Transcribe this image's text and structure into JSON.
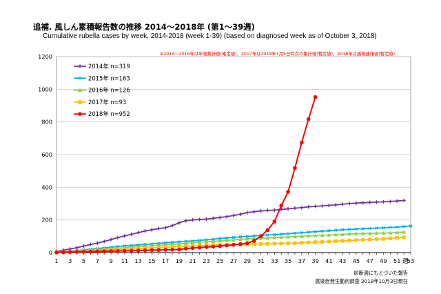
{
  "title": "追補. 風しん累積報告数の推移  2014～2018年 (第1～39週)",
  "subtitle": "Cumulative rubella cases by week, 2014-2018 (week 1-39)  (based on diagnosed week as of October 3, 2018)",
  "note_top": "※2014～2016年は年報集計値(確定値)、2017年は2018年1月5日時点の集計値(暫定値)、2018年は週報速報値(暫定値)",
  "x_unit": "週",
  "footer_line1": "診断週にもとづいた報告",
  "footer_line2": "感染症発生動向調査 2018年10月3日現在",
  "chart_data": {
    "type": "line",
    "title": "追補. 風しん累積報告数の推移  2014～2018年 (第1～39週)",
    "xlabel": "週",
    "ylabel": "",
    "xlim": [
      1,
      53
    ],
    "ylim": [
      0,
      1200
    ],
    "x_ticks": [
      1,
      3,
      5,
      7,
      9,
      11,
      13,
      15,
      17,
      19,
      21,
      23,
      25,
      27,
      29,
      31,
      33,
      35,
      37,
      39,
      41,
      43,
      45,
      47,
      49,
      51,
      53
    ],
    "y_ticks": [
      0,
      200,
      400,
      600,
      800,
      1000,
      1200
    ],
    "grid": "horizontal",
    "legend_position": "top-left",
    "series": [
      {
        "name": "2014年 n=319",
        "color": "#7030A0",
        "marker": "plus",
        "x": [
          1,
          2,
          3,
          4,
          5,
          6,
          7,
          8,
          9,
          10,
          11,
          12,
          13,
          14,
          15,
          16,
          17,
          18,
          19,
          20,
          21,
          22,
          23,
          24,
          25,
          26,
          27,
          28,
          29,
          30,
          31,
          32,
          33,
          34,
          35,
          36,
          37,
          38,
          39,
          40,
          41,
          42,
          43,
          44,
          45,
          46,
          47,
          48,
          49,
          50,
          51,
          52
        ],
        "values": [
          5,
          15,
          22,
          30,
          40,
          50,
          58,
          68,
          80,
          92,
          102,
          112,
          122,
          132,
          140,
          147,
          152,
          165,
          182,
          195,
          200,
          203,
          205,
          210,
          215,
          220,
          227,
          235,
          245,
          250,
          255,
          258,
          260,
          265,
          268,
          272,
          275,
          280,
          283,
          286,
          289,
          292,
          296,
          300,
          303,
          305,
          307,
          309,
          311,
          313,
          316,
          319
        ]
      },
      {
        "name": "2015年 n=163",
        "color": "#00B0F0",
        "marker": "asterisk",
        "x": [
          1,
          2,
          3,
          4,
          5,
          6,
          7,
          8,
          9,
          10,
          11,
          12,
          13,
          14,
          15,
          16,
          17,
          18,
          19,
          20,
          21,
          22,
          23,
          24,
          25,
          26,
          27,
          28,
          29,
          30,
          31,
          32,
          33,
          34,
          35,
          36,
          37,
          38,
          39,
          40,
          41,
          42,
          43,
          44,
          45,
          46,
          47,
          48,
          49,
          50,
          51,
          52,
          53
        ],
        "values": [
          2,
          5,
          9,
          13,
          17,
          21,
          25,
          29,
          33,
          37,
          41,
          44,
          47,
          50,
          53,
          56,
          60,
          63,
          66,
          69,
          72,
          75,
          78,
          82,
          86,
          90,
          93,
          96,
          99,
          102,
          105,
          108,
          110,
          113,
          116,
          119,
          122,
          125,
          128,
          131,
          134,
          137,
          140,
          142,
          144,
          146,
          148,
          150,
          152,
          154,
          156,
          159,
          163
        ]
      },
      {
        "name": "2016年 n=126",
        "color": "#92D050",
        "marker": "triangle",
        "x": [
          1,
          2,
          3,
          4,
          5,
          6,
          7,
          8,
          9,
          10,
          11,
          12,
          13,
          14,
          15,
          16,
          17,
          18,
          19,
          20,
          21,
          22,
          23,
          24,
          25,
          26,
          27,
          28,
          29,
          30,
          31,
          32,
          33,
          34,
          35,
          36,
          37,
          38,
          39,
          40,
          41,
          42,
          43,
          44,
          45,
          46,
          47,
          48,
          49,
          50,
          51,
          52
        ],
        "values": [
          2,
          4,
          6,
          9,
          12,
          15,
          18,
          21,
          24,
          27,
          30,
          33,
          36,
          39,
          42,
          45,
          48,
          51,
          54,
          57,
          60,
          63,
          66,
          69,
          72,
          75,
          78,
          81,
          84,
          86,
          88,
          90,
          92,
          94,
          96,
          98,
          100,
          102,
          104,
          106,
          108,
          110,
          112,
          114,
          116,
          117,
          118,
          119,
          120,
          121,
          123,
          126
        ]
      },
      {
        "name": "2017年 n=93",
        "color": "#FFC000",
        "marker": "square",
        "x": [
          1,
          2,
          3,
          4,
          5,
          6,
          7,
          8,
          9,
          10,
          11,
          12,
          13,
          14,
          15,
          16,
          17,
          18,
          19,
          20,
          21,
          22,
          23,
          24,
          25,
          26,
          27,
          28,
          29,
          30,
          31,
          32,
          33,
          34,
          35,
          36,
          37,
          38,
          39,
          40,
          41,
          42,
          43,
          44,
          45,
          46,
          47,
          48,
          49,
          50,
          51,
          52
        ],
        "values": [
          1,
          3,
          5,
          7,
          9,
          11,
          13,
          15,
          17,
          19,
          21,
          23,
          25,
          27,
          29,
          31,
          33,
          35,
          37,
          39,
          41,
          43,
          45,
          46,
          47,
          48,
          49,
          50,
          51,
          52,
          53,
          54,
          55,
          56,
          57,
          58,
          60,
          62,
          64,
          66,
          68,
          70,
          72,
          74,
          76,
          78,
          80,
          82,
          84,
          87,
          90,
          93
        ]
      },
      {
        "name": "2018年 n=952",
        "color": "#FF0000",
        "marker": "circle",
        "x": [
          1,
          2,
          3,
          4,
          5,
          6,
          7,
          8,
          9,
          10,
          11,
          12,
          13,
          14,
          15,
          16,
          17,
          18,
          19,
          20,
          21,
          22,
          23,
          24,
          25,
          26,
          27,
          28,
          29,
          30,
          31,
          32,
          33,
          34,
          35,
          36,
          37,
          38,
          39
        ],
        "values": [
          1,
          2,
          3,
          4,
          5,
          6,
          7,
          8,
          9,
          10,
          11,
          12,
          13,
          14,
          15,
          16,
          17,
          18,
          19,
          24,
          28,
          31,
          34,
          36,
          40,
          44,
          48,
          52,
          58,
          72,
          100,
          138,
          190,
          288,
          372,
          518,
          673,
          817,
          952
        ]
      }
    ]
  }
}
